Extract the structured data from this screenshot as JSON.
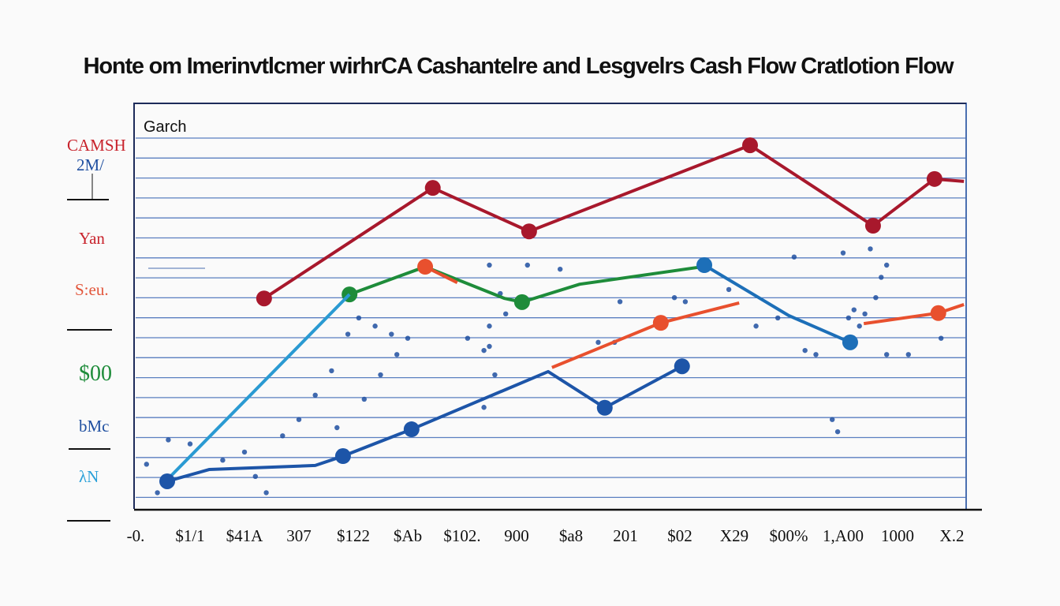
{
  "chart_data": {
    "type": "line",
    "title": "Honte om Imerinvtlcmer wirhrCA Cashantelre and Lesgvelrs Cash Flow Cratlotion Flow",
    "legend_label": "Garch",
    "legend_placement": "top-left",
    "grid": true,
    "xlim": [
      0,
      15.5
    ],
    "ylim": [
      0,
      100
    ],
    "x_tick_labels": [
      "-0.",
      "$1/1",
      "$41A",
      "307",
      "$122",
      "$Ab",
      "$102.",
      "900",
      "$a8",
      "201",
      "$02",
      "X29",
      "$00%",
      "1,A00",
      "1000",
      "X.2"
    ],
    "y_tick_labels": [
      {
        "text": "CAMSH",
        "color": "#c8232c"
      },
      {
        "text": "2M/",
        "color": "#1f4fa0"
      },
      {
        "text": "Yan",
        "color": "#c8232c"
      },
      {
        "text": "S:eu.",
        "color": "#e2553a"
      },
      {
        "text": "$00",
        "color": "#1e8c3a"
      },
      {
        "text": "bMc",
        "color": "#1f4fa0"
      },
      {
        "text": "λN",
        "color": "#2aa0d8"
      }
    ],
    "series": [
      {
        "color": "#a8182c",
        "points": [
          [
            2.36,
            51.8
          ],
          [
            5.46,
            79.0
          ],
          [
            7.23,
            68.3
          ],
          [
            11.29,
            89.5
          ],
          [
            13.55,
            69.7
          ],
          [
            14.68,
            81.2
          ],
          [
            15.22,
            80.6
          ]
        ],
        "markers": [
          0,
          1,
          2,
          3,
          4,
          5
        ]
      },
      {
        "color": "#1e8c3a",
        "points": [
          [
            3.93,
            52.8
          ],
          [
            5.32,
            59.6
          ],
          [
            6.78,
            51.8
          ],
          [
            7.1,
            50.9
          ],
          [
            8.16,
            55.3
          ],
          [
            10.41,
            59.6
          ]
        ],
        "markers": [
          0,
          3
        ]
      },
      {
        "color": "#2a9ad2",
        "points": [
          [
            0.55,
            6.8
          ],
          [
            3.93,
            52.8
          ]
        ],
        "markers": []
      },
      {
        "color": "#1d55a8",
        "points": [
          [
            0.58,
            6.8
          ],
          [
            1.35,
            9.7
          ],
          [
            3.3,
            10.7
          ],
          [
            3.81,
            13.0
          ],
          [
            5.07,
            19.6
          ],
          [
            7.58,
            33.8
          ],
          [
            8.62,
            24.9
          ],
          [
            10.04,
            35.1
          ]
        ],
        "markers": [
          0,
          3,
          4,
          6,
          7
        ]
      },
      {
        "color": "#1d6fb8",
        "points": [
          [
            10.45,
            60.0
          ],
          [
            12.0,
            47.6
          ],
          [
            13.13,
            41.0
          ]
        ],
        "markers": [
          0,
          2
        ]
      },
      {
        "color": "#e8502e",
        "points": [
          [
            5.32,
            59.6
          ],
          [
            5.91,
            55.7
          ]
        ],
        "markers": [
          0
        ]
      },
      {
        "color": "#e8502e",
        "points": [
          [
            7.65,
            34.8
          ],
          [
            9.65,
            45.8
          ],
          [
            11.09,
            50.7
          ]
        ],
        "markers": [
          1
        ]
      },
      {
        "color": "#e8502e",
        "points": [
          [
            13.38,
            45.6
          ],
          [
            14.75,
            48.2
          ],
          [
            15.22,
            50.3
          ]
        ],
        "markers": [
          1
        ]
      }
    ],
    "scatter": [
      [
        0.2,
        11
      ],
      [
        0.4,
        4
      ],
      [
        0.6,
        17
      ],
      [
        1.0,
        16
      ],
      [
        1.6,
        12
      ],
      [
        2.0,
        14
      ],
      [
        2.2,
        8
      ],
      [
        2.4,
        4
      ],
      [
        2.7,
        18
      ],
      [
        3.0,
        22
      ],
      [
        3.3,
        28
      ],
      [
        3.6,
        34
      ],
      [
        3.9,
        43
      ],
      [
        4.1,
        47
      ],
      [
        4.4,
        45
      ],
      [
        4.7,
        43
      ],
      [
        5.0,
        42
      ],
      [
        4.8,
        38
      ],
      [
        4.5,
        33
      ],
      [
        4.2,
        27
      ],
      [
        3.7,
        20
      ],
      [
        6.1,
        42
      ],
      [
        6.4,
        39
      ],
      [
        6.6,
        33
      ],
      [
        6.5,
        40
      ],
      [
        6.4,
        25
      ],
      [
        6.5,
        45
      ],
      [
        6.8,
        48
      ],
      [
        6.7,
        53
      ],
      [
        6.5,
        60
      ],
      [
        7.2,
        60
      ],
      [
        7.8,
        59
      ],
      [
        8.5,
        41
      ],
      [
        8.8,
        41
      ],
      [
        8.9,
        51
      ],
      [
        9.9,
        52
      ],
      [
        10.1,
        51
      ],
      [
        10.9,
        54
      ],
      [
        11.4,
        45
      ],
      [
        11.8,
        47
      ],
      [
        12.3,
        39
      ],
      [
        12.5,
        38
      ],
      [
        12.8,
        22
      ],
      [
        12.9,
        19
      ],
      [
        13.0,
        63
      ],
      [
        13.2,
        49
      ],
      [
        13.5,
        64
      ],
      [
        13.8,
        60
      ],
      [
        13.7,
        57
      ],
      [
        13.6,
        52
      ],
      [
        13.4,
        48
      ],
      [
        13.3,
        45
      ],
      [
        13.8,
        38
      ],
      [
        12.1,
        62
      ],
      [
        13.1,
        47
      ],
      [
        14.8,
        42
      ],
      [
        14.2,
        38
      ]
    ]
  }
}
